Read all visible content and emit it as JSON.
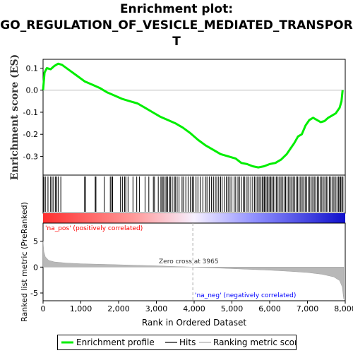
{
  "chart_data": {
    "type": "line",
    "title_lines": [
      "Enrichment plot:",
      "GO_REGULATION_OF_VESICLE_MEDIATED_TRANSPOR",
      "T"
    ],
    "ylabel_es": "Enrichment score (ES)",
    "ylabel_metric": "Ranked list metric (PreRanked)",
    "xlabel": "Rank in Ordered Dataset",
    "xlim": [
      0,
      8000
    ],
    "xticks": [
      "0",
      "1,000",
      "2,000",
      "3,000",
      "4,000",
      "5,000",
      "6,000",
      "7,000",
      "8,000"
    ],
    "es_ylim": [
      -0.385,
      0.14
    ],
    "es_yticks": [
      "0.1",
      "0.0",
      "-0.1",
      "-0.2",
      "-0.3"
    ],
    "metric_ylim": [
      -6.5,
      8.5
    ],
    "metric_yticks": [
      "5",
      "0",
      "-5"
    ],
    "zero_cross_label": "Zero cross at 3965",
    "zero_cross_rank": 3965,
    "pos_label": "'na_pos' (positively correlated)",
    "neg_label": "'na_neg' (negatively correlated)",
    "colors": {
      "es_line": "#00ee00",
      "pos_text": "#ff0000",
      "neg_text": "#0000ff",
      "hits": "#000000",
      "metric": "#b0b0b0"
    },
    "es_profile": [
      [
        0,
        0.0
      ],
      [
        40,
        0.08
      ],
      [
        100,
        0.1
      ],
      [
        200,
        0.095
      ],
      [
        300,
        0.11
      ],
      [
        400,
        0.12
      ],
      [
        500,
        0.115
      ],
      [
        700,
        0.09
      ],
      [
        900,
        0.065
      ],
      [
        1100,
        0.04
      ],
      [
        1300,
        0.025
      ],
      [
        1500,
        0.01
      ],
      [
        1700,
        -0.01
      ],
      [
        1900,
        -0.025
      ],
      [
        2100,
        -0.04
      ],
      [
        2300,
        -0.05
      ],
      [
        2500,
        -0.06
      ],
      [
        2700,
        -0.08
      ],
      [
        2900,
        -0.1
      ],
      [
        3100,
        -0.12
      ],
      [
        3300,
        -0.135
      ],
      [
        3500,
        -0.15
      ],
      [
        3700,
        -0.17
      ],
      [
        3900,
        -0.195
      ],
      [
        4100,
        -0.225
      ],
      [
        4300,
        -0.25
      ],
      [
        4500,
        -0.27
      ],
      [
        4700,
        -0.29
      ],
      [
        4900,
        -0.3
      ],
      [
        5100,
        -0.31
      ],
      [
        5250,
        -0.33
      ],
      [
        5400,
        -0.335
      ],
      [
        5550,
        -0.345
      ],
      [
        5700,
        -0.35
      ],
      [
        5850,
        -0.345
      ],
      [
        6000,
        -0.335
      ],
      [
        6150,
        -0.33
      ],
      [
        6300,
        -0.315
      ],
      [
        6450,
        -0.29
      ],
      [
        6550,
        -0.265
      ],
      [
        6650,
        -0.24
      ],
      [
        6750,
        -0.21
      ],
      [
        6850,
        -0.2
      ],
      [
        6950,
        -0.16
      ],
      [
        7050,
        -0.135
      ],
      [
        7150,
        -0.125
      ],
      [
        7250,
        -0.135
      ],
      [
        7350,
        -0.145
      ],
      [
        7450,
        -0.14
      ],
      [
        7550,
        -0.125
      ],
      [
        7650,
        -0.115
      ],
      [
        7750,
        -0.105
      ],
      [
        7850,
        -0.08
      ],
      [
        7900,
        -0.05
      ],
      [
        7930,
        0.0
      ]
    ],
    "hits": [
      20,
      60,
      130,
      200,
      240,
      280,
      330,
      360,
      400,
      470,
      1100,
      1120,
      1380,
      1400,
      1620,
      1780,
      1820,
      1840,
      2050,
      2100,
      2160,
      2190,
      2250,
      2380,
      2480,
      2550,
      2700,
      2800,
      2920,
      2950,
      3050,
      3120,
      3150,
      3180,
      3230,
      3260,
      3300,
      3350,
      3370,
      3420,
      3470,
      3500,
      3550,
      3600,
      3680,
      3720,
      3780,
      3840,
      3900,
      3950,
      3990,
      4050,
      4100,
      4160,
      4230,
      4300,
      4340,
      4400,
      4460,
      4510,
      4560,
      4600,
      4650,
      4700,
      4740,
      4800,
      4850,
      4900,
      4950,
      5000,
      5060,
      5100,
      5160,
      5200,
      5250,
      5300,
      5340,
      5400,
      5450,
      5500,
      5550,
      5600,
      5640,
      5680,
      5720,
      5760,
      5800,
      5830,
      5860,
      5900,
      5930,
      5960,
      6000,
      6030,
      6060,
      6100,
      6140,
      6180,
      6220,
      6260,
      6300,
      6340,
      6380,
      6420,
      6460,
      6500,
      6540,
      6580,
      6620,
      6660,
      6700,
      6740,
      6780,
      6820,
      6860,
      6900,
      6940,
      6980,
      7020,
      7060,
      7100,
      7140,
      7180,
      7220,
      7260,
      7300,
      7340,
      7380,
      7420,
      7460,
      7500,
      7540,
      7580,
      7620,
      7660,
      7700,
      7740,
      7780,
      7820,
      7850,
      7880,
      7910,
      7940
    ],
    "metric_profile": [
      [
        0,
        5.0
      ],
      [
        20,
        3.0
      ],
      [
        60,
        2.0
      ],
      [
        150,
        1.3
      ],
      [
        300,
        1.0
      ],
      [
        600,
        0.8
      ],
      [
        1000,
        0.65
      ],
      [
        1500,
        0.55
      ],
      [
        2000,
        0.45
      ],
      [
        2500,
        0.35
      ],
      [
        3000,
        0.25
      ],
      [
        3500,
        0.12
      ],
      [
        3965,
        0.0
      ],
      [
        4500,
        -0.15
      ],
      [
        5000,
        -0.3
      ],
      [
        5500,
        -0.45
      ],
      [
        6000,
        -0.6
      ],
      [
        6500,
        -0.8
      ],
      [
        7000,
        -1.05
      ],
      [
        7400,
        -1.4
      ],
      [
        7700,
        -1.9
      ],
      [
        7850,
        -2.6
      ],
      [
        7920,
        -3.8
      ],
      [
        7960,
        -6.2
      ]
    ],
    "legend": [
      {
        "label": "Enrichment profile",
        "color": "#00ee00"
      },
      {
        "label": "Hits",
        "color": "#666666"
      },
      {
        "label": "Ranking metric scores",
        "color": "#cccccc"
      }
    ]
  }
}
